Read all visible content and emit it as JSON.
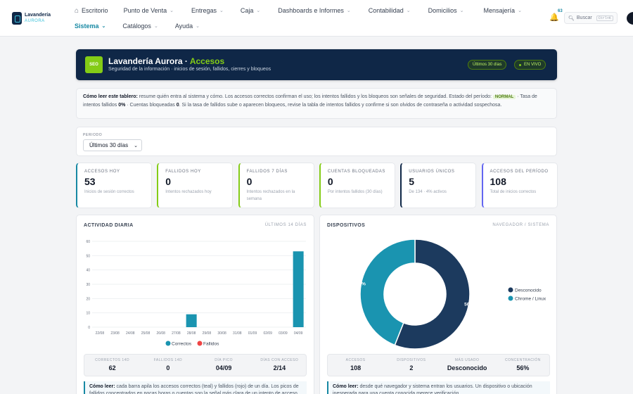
{
  "app": {
    "brand_line1": "Lavandería",
    "brand_line2": "AURORA"
  },
  "nav": {
    "row1": [
      {
        "label": "Escritorio",
        "chevron": false,
        "icon": "home-icon"
      },
      {
        "label": "Punto de Venta",
        "chevron": true
      },
      {
        "label": "Entregas",
        "chevron": true
      },
      {
        "label": "Caja",
        "chevron": true
      },
      {
        "label": "Dashboards e Informes",
        "chevron": true
      },
      {
        "label": "Contabilidad",
        "chevron": true
      },
      {
        "label": "Domicilios",
        "chevron": true
      },
      {
        "label": "Mensajería",
        "chevron": true
      }
    ],
    "row2": [
      {
        "label": "Sistema",
        "chevron": true,
        "active": true
      },
      {
        "label": "Catálogos",
        "chevron": true
      },
      {
        "label": "Ayuda",
        "chevron": true
      }
    ]
  },
  "header_right": {
    "notifications": "63",
    "search_label": "Buscar",
    "search_shortcut": "Ctrl+K"
  },
  "hero": {
    "icon_text": "SEO",
    "title_main": "Lavandería Aurora · ",
    "title_accent": "Accesos",
    "subtitle": "Seguridad de la información · inicios de sesión, fallidos, cierres y bloqueos",
    "range_pill": "Últimos 30 días",
    "live_pill": "EN VIVO"
  },
  "info": {
    "lead": "Cómo leer este tablero:",
    "text1": " resume quién entra al sistema y cómo. Los accesos correctos confirman el uso; los intentos fallidos y los bloqueos son señales de seguridad. Estado del período: ",
    "status": "NORMAL",
    "text2": " · Tasa de intentos fallidos ",
    "rate": "0%",
    "text3": " · Cuentas bloqueadas ",
    "blocked": "0",
    "text4": ". Si la tasa de fallidos sube o aparecen bloqueos, revise la tabla de intentos fallidos y confirme si son olvidos de contraseña o actividad sospechosa."
  },
  "filter": {
    "label": "PERIODO",
    "value": "Últimos 30 días"
  },
  "kpis": [
    {
      "label": "Accesos hoy",
      "value": "53",
      "sub": "Inicios de sesión correctos",
      "color": "#1688a3"
    },
    {
      "label": "Fallidos hoy",
      "value": "0",
      "sub": "Intentos rechazados hoy",
      "color": "#84cc16"
    },
    {
      "label": "Fallidos 7 días",
      "value": "0",
      "sub": "Intentos rechazados en la semana",
      "color": "#84cc16"
    },
    {
      "label": "Cuentas bloqueadas",
      "value": "0",
      "sub": "Por intentos fallidos (30 días)",
      "color": "#84cc16"
    },
    {
      "label": "Usuarios únicos",
      "value": "5",
      "sub": "De 134 · 4% activos",
      "color": "#0f2747"
    },
    {
      "label": "Accesos del período",
      "value": "108",
      "sub": "Total de inicios correctos",
      "color": "#6366f1"
    }
  ],
  "activity": {
    "title": "ACTIVIDAD DIARIA",
    "range": "ÚLTIMOS 14 DÍAS",
    "stats": [
      {
        "label": "CORRECTOS 14D",
        "value": "62"
      },
      {
        "label": "FALLIDOS 14D",
        "value": "0"
      },
      {
        "label": "DÍA PICO",
        "value": "04/09"
      },
      {
        "label": "DÍAS CON ACCESO",
        "value": "2/14"
      }
    ],
    "note_lead": "Cómo leer:",
    "note_text": " cada barra apila los accesos correctos (teal) y fallidos (rojo) de un día. Los picos de fallidos concentrados en pocas horas o cuentas son la señal más clara de un intento de acceso no"
  },
  "devices": {
    "title": "DISPOSITIVOS",
    "range": "NAVEGADOR / SISTEMA",
    "stats": [
      {
        "label": "ACCESOS",
        "value": "108"
      },
      {
        "label": "DISPOSITIVOS",
        "value": "2"
      },
      {
        "label": "MÁS USADO",
        "value": "Desconocido"
      },
      {
        "label": "CONCENTRACIÓN",
        "value": "56%"
      }
    ],
    "note_lead": "Cómo leer:",
    "note_text": " desde qué navegador y sistema entran los usuarios. Un dispositivo o ubicación inesperada para una cuenta conocida merece verificación."
  },
  "chart_data": [
    {
      "type": "bar",
      "categories": [
        "22/08",
        "23/08",
        "24/08",
        "25/08",
        "26/08",
        "27/08",
        "28/08",
        "29/08",
        "30/08",
        "31/08",
        "01/09",
        "02/09",
        "03/09",
        "04/09"
      ],
      "series": [
        {
          "name": "Correctos",
          "color": "#1a94b0",
          "values": [
            0,
            0,
            0,
            0,
            0,
            0,
            9,
            0,
            0,
            0,
            0,
            0,
            0,
            53
          ]
        },
        {
          "name": "Fallidos",
          "color": "#ef4444",
          "values": [
            0,
            0,
            0,
            0,
            0,
            0,
            0,
            0,
            0,
            0,
            0,
            0,
            0,
            0
          ]
        }
      ],
      "ylim": [
        0,
        60
      ],
      "yticks": [
        0,
        10,
        20,
        30,
        40,
        50,
        60
      ],
      "stacked": true,
      "legend": "bottom"
    },
    {
      "type": "pie",
      "donut": true,
      "labels": [
        "Desconocido",
        "Chrome / Linux"
      ],
      "values": [
        56,
        44
      ],
      "value_labels": [
        "56%",
        "44%"
      ],
      "colors": [
        "#1c3a5e",
        "#1a94b0"
      ],
      "legend": "right"
    }
  ]
}
